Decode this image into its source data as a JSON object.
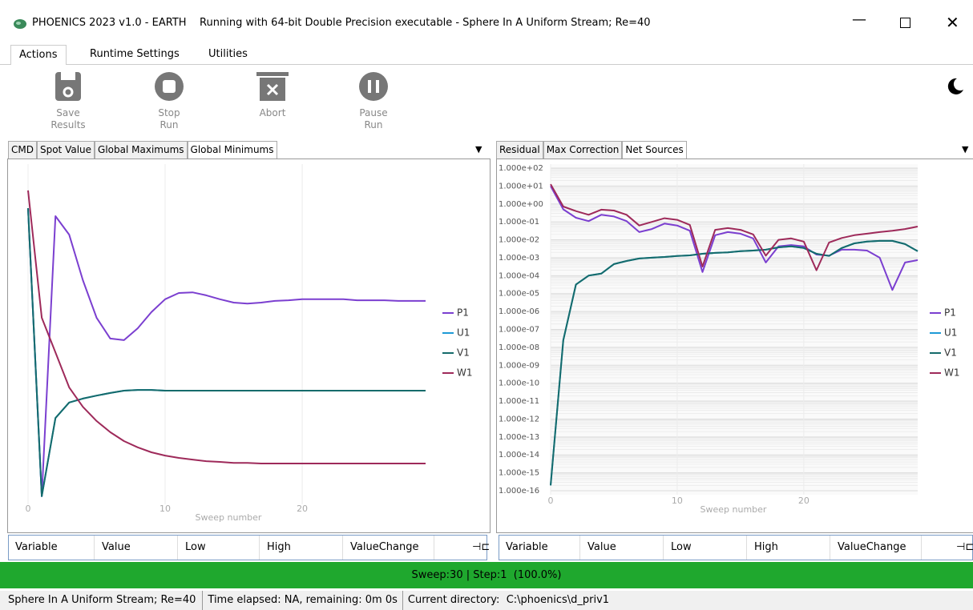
{
  "window_title": "PHOENICS 2023 v1.0 - EARTH    Running with 64-bit Double Precision executable - Sphere In A Uniform Stream; Re=40",
  "tabs": [
    "Actions",
    "Runtime Settings",
    "Utilities"
  ],
  "toolbar": [
    {
      "lines": [
        "Save",
        "Results"
      ]
    },
    {
      "lines": [
        "Stop",
        "Run"
      ]
    },
    {
      "lines": [
        "Abort"
      ]
    },
    {
      "lines": [
        "Pause",
        "Run"
      ]
    }
  ],
  "left_tabs": [
    "CMD",
    "Spot Value",
    "Global Maximums",
    "Global Minimums"
  ],
  "right_tabs": [
    "Residual",
    "Max Correction",
    "Net Sources"
  ],
  "table_columns": [
    "Variable",
    "Value",
    "Low",
    "High",
    "ValueChange"
  ],
  "progress": "Sweep:30 | Step:1  (100.0%)",
  "status": [
    "Sphere In A Uniform Stream; Re=40",
    "Time elapsed: NA, remaining: 0m 0s",
    "Current directory:  C:\\phoenics\\d_priv1"
  ],
  "chart_data": [
    {
      "type": "line",
      "x_label": "Sweep number",
      "x": [
        0,
        1,
        2,
        3,
        4,
        5,
        6,
        7,
        8,
        9,
        10,
        11,
        12,
        13,
        14,
        15,
        16,
        17,
        18,
        19,
        20,
        21,
        22,
        23,
        24,
        25,
        26,
        27,
        28,
        29
      ],
      "xlim": [
        0,
        29
      ],
      "xticks": [
        0,
        10,
        20
      ],
      "ylim": [
        0,
        100
      ],
      "grid": true,
      "series": [
        {
          "name": "P1",
          "color": "#7b3fd0",
          "values": [
            92.2,
            4.9,
            89.8,
            84.2,
            70.4,
            59.0,
            52.7,
            52.2,
            55.8,
            60.7,
            64.6,
            66.5,
            66.7,
            65.8,
            64.6,
            63.6,
            63.3,
            63.6,
            64.1,
            64.3,
            64.6,
            64.6,
            64.6,
            64.6,
            64.3,
            64.3,
            64.3,
            64.1,
            64.1,
            64.1
          ]
        },
        {
          "name": "U1",
          "color": "#1e9ad6",
          "values": [
            92.2,
            4.9,
            28.6,
            33.3,
            34.5,
            35.4,
            36.2,
            36.9,
            37.1,
            37.1,
            36.9,
            36.9,
            36.9,
            36.9,
            36.9,
            36.9,
            36.9,
            36.9,
            36.9,
            36.9,
            36.9,
            36.9,
            36.9,
            36.9,
            36.9,
            36.9,
            36.9,
            36.9,
            36.9,
            36.9
          ]
        },
        {
          "name": "V1",
          "color": "#156b6b",
          "values": [
            92.2,
            4.9,
            28.6,
            33.3,
            34.5,
            35.4,
            36.2,
            36.9,
            37.1,
            37.1,
            36.9,
            36.9,
            36.9,
            36.9,
            36.9,
            36.9,
            36.9,
            36.9,
            36.9,
            36.9,
            36.9,
            36.9,
            36.9,
            36.9,
            36.9,
            36.9,
            36.9,
            36.9,
            36.9,
            36.9
          ]
        },
        {
          "name": "W1",
          "color": "#9e2a5a",
          "values": [
            97.6,
            59.0,
            48.5,
            37.9,
            32.0,
            27.7,
            24.3,
            21.6,
            19.7,
            18.2,
            17.2,
            16.5,
            16.0,
            15.5,
            15.3,
            15.0,
            15.0,
            14.8,
            14.8,
            14.8,
            14.8,
            14.8,
            14.8,
            14.8,
            14.8,
            14.8,
            14.8,
            14.8,
            14.8,
            14.8
          ]
        }
      ]
    },
    {
      "type": "line",
      "x_label": "Sweep number",
      "log_scale": true,
      "x": [
        0,
        1,
        2,
        3,
        4,
        5,
        6,
        7,
        8,
        9,
        10,
        11,
        12,
        13,
        14,
        15,
        16,
        17,
        18,
        19,
        20,
        21,
        22,
        23,
        24,
        25,
        26,
        27,
        28,
        29
      ],
      "xlim": [
        0,
        29
      ],
      "xticks": [
        0,
        10,
        20
      ],
      "ylim": [
        1e-16,
        100
      ],
      "grid": true,
      "yticks": [
        {
          "value": 100,
          "label": "1.000e+02"
        },
        {
          "value": 10,
          "label": "1.000e+01"
        },
        {
          "value": 1,
          "label": "1.000e+00"
        },
        {
          "value": 0.1,
          "label": "1.000e-01"
        },
        {
          "value": 0.01,
          "label": "1.000e-02"
        },
        {
          "value": 0.001,
          "label": "1.000e-03"
        },
        {
          "value": 0.0001,
          "label": "1.000e-04"
        },
        {
          "value": 1e-05,
          "label": "1.000e-05"
        },
        {
          "value": 1e-06,
          "label": "1.000e-06"
        },
        {
          "value": 1e-07,
          "label": "1.000e-07"
        },
        {
          "value": 1e-08,
          "label": "1.000e-08"
        },
        {
          "value": 1e-09,
          "label": "1.000e-09"
        },
        {
          "value": 1e-10,
          "label": "1.000e-10"
        },
        {
          "value": 1e-11,
          "label": "1.000e-11"
        },
        {
          "value": 1e-12,
          "label": "1.000e-12"
        },
        {
          "value": 1e-13,
          "label": "1.000e-13"
        },
        {
          "value": 1e-14,
          "label": "1.000e-14"
        },
        {
          "value": 1e-15,
          "label": "1.000e-15"
        },
        {
          "value": 1e-16,
          "label": "1.000e-16"
        }
      ],
      "series": [
        {
          "name": "P1",
          "color": "#7b3fd0",
          "values": [
            10,
            0.5,
            0.17,
            0.11,
            0.25,
            0.2,
            0.11,
            0.027,
            0.04,
            0.08,
            0.063,
            0.032,
            0.00016,
            0.018,
            0.027,
            0.022,
            0.012,
            0.00054,
            0.0043,
            0.0051,
            0.0043,
            0.0015,
            0.0013,
            0.0028,
            0.0028,
            0.0025,
            0.001,
            1.6e-05,
            0.00054,
            0.00074
          ]
        },
        {
          "name": "U1",
          "color": "#1e9ad6",
          "values": [
            2e-16,
            2.5e-08,
            3.2e-05,
            0.0001,
            0.00013,
            0.00044,
            0.00066,
            0.00091,
            0.001,
            0.0011,
            0.00126,
            0.00135,
            0.00166,
            0.00186,
            0.002,
            0.0023,
            0.0025,
            0.0028,
            0.0038,
            0.0043,
            0.0035,
            0.00166,
            0.00126,
            0.0035,
            0.0063,
            0.0079,
            0.0087,
            0.0087,
            0.0058,
            0.0023
          ]
        },
        {
          "name": "V1",
          "color": "#156b6b",
          "values": [
            2e-16,
            2.5e-08,
            3.2e-05,
            0.0001,
            0.00013,
            0.00044,
            0.00066,
            0.00091,
            0.001,
            0.0011,
            0.00126,
            0.00135,
            0.00166,
            0.00186,
            0.002,
            0.0023,
            0.0025,
            0.0028,
            0.0038,
            0.0043,
            0.0035,
            0.00166,
            0.00126,
            0.0035,
            0.0063,
            0.0079,
            0.0087,
            0.0087,
            0.0058,
            0.0023
          ]
        },
        {
          "name": "W1",
          "color": "#9e2a5a",
          "values": [
            12.6,
            0.72,
            0.4,
            0.25,
            0.48,
            0.43,
            0.25,
            0.063,
            0.1,
            0.16,
            0.13,
            0.068,
            0.00032,
            0.036,
            0.045,
            0.036,
            0.02,
            0.0013,
            0.01,
            0.012,
            0.0079,
            0.0002,
            0.0071,
            0.0126,
            0.018,
            0.022,
            0.027,
            0.032,
            0.04,
            0.055
          ]
        }
      ]
    }
  ]
}
